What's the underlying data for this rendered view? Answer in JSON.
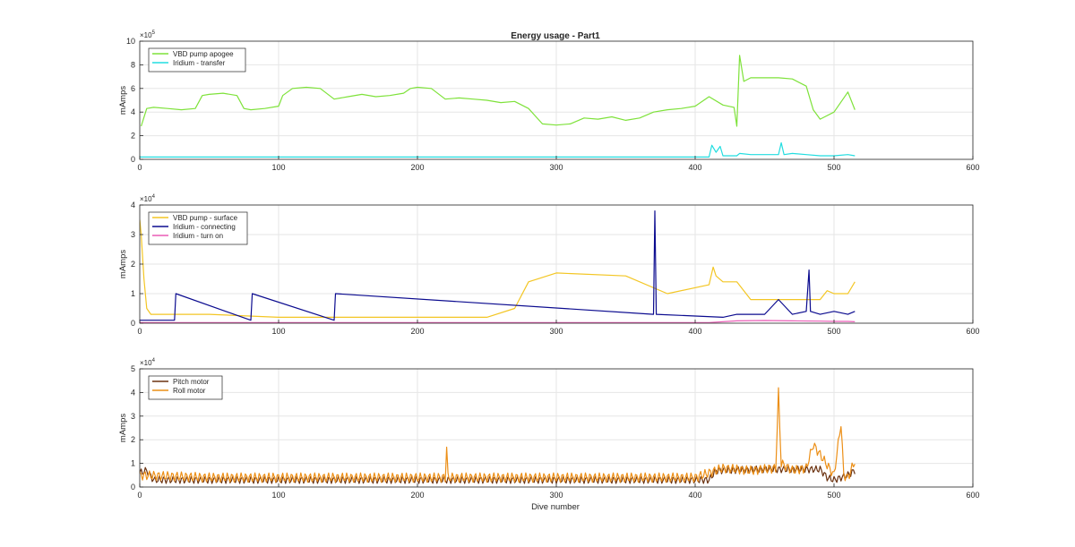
{
  "figure": {
    "title": "Energy usage - Part1",
    "xlabel": "Dive number"
  },
  "colors": {
    "vbd_apogee": "#7ee23a",
    "iridium_transfer": "#22dde0",
    "vbd_surface": "#f3c624",
    "iridium_connecting": "#0b0b8f",
    "iridium_turn_on": "#ea5cb6",
    "pitch_motor": "#6b3210",
    "roll_motor": "#ec8f17",
    "grid": "#e6e6e6",
    "axis": "#262626"
  },
  "chart_data": [
    {
      "type": "line",
      "title": "Energy usage - Part1",
      "xlabel": "",
      "ylabel": "mAmps",
      "xlim": [
        0,
        600
      ],
      "ylim": [
        0,
        1000000
      ],
      "xticks": [
        0,
        100,
        200,
        300,
        400,
        500,
        600
      ],
      "yticks": [
        0,
        200000,
        400000,
        600000,
        800000,
        1000000
      ],
      "ytick_labels": [
        "0",
        "2",
        "4",
        "6",
        "8",
        "10"
      ],
      "y_exponent": {
        "base": "×10",
        "power": "5"
      },
      "grid": true,
      "legend_position": "top-left",
      "series": [
        {
          "name": "VBD pump apogee",
          "color_key": "vbd_apogee",
          "x": [
            1,
            5,
            10,
            20,
            30,
            40,
            45,
            50,
            60,
            70,
            75,
            80,
            90,
            100,
            103,
            110,
            120,
            130,
            140,
            150,
            160,
            170,
            180,
            190,
            195,
            200,
            210,
            220,
            230,
            240,
            250,
            260,
            270,
            280,
            290,
            300,
            310,
            320,
            330,
            340,
            350,
            360,
            370,
            380,
            390,
            400,
            410,
            420,
            428,
            430,
            432,
            435,
            440,
            460,
            470,
            480,
            485,
            490,
            500,
            510,
            515
          ],
          "values": [
            280000,
            430000,
            440000,
            430000,
            420000,
            430000,
            540000,
            550000,
            560000,
            540000,
            430000,
            420000,
            430000,
            450000,
            540000,
            600000,
            610000,
            600000,
            510000,
            530000,
            550000,
            530000,
            540000,
            560000,
            600000,
            610000,
            600000,
            510000,
            520000,
            510000,
            500000,
            480000,
            490000,
            430000,
            300000,
            290000,
            300000,
            350000,
            340000,
            360000,
            330000,
            350000,
            400000,
            420000,
            430000,
            450000,
            530000,
            460000,
            440000,
            280000,
            880000,
            660000,
            690000,
            690000,
            680000,
            620000,
            420000,
            340000,
            400000,
            570000,
            420000
          ]
        },
        {
          "name": "Iridium - transfer",
          "color_key": "iridium_transfer",
          "x": [
            0,
            100,
            200,
            300,
            400,
            410,
            412,
            415,
            418,
            420,
            430,
            432,
            440,
            460,
            462,
            464,
            470,
            480,
            490,
            500,
            510,
            515
          ],
          "values": [
            20000,
            20000,
            20000,
            20000,
            20000,
            20000,
            120000,
            60000,
            110000,
            30000,
            30000,
            50000,
            40000,
            40000,
            140000,
            40000,
            50000,
            40000,
            30000,
            30000,
            40000,
            30000
          ]
        }
      ]
    },
    {
      "type": "line",
      "xlabel": "",
      "ylabel": "mAmps",
      "xlim": [
        0,
        600
      ],
      "ylim": [
        0,
        40000
      ],
      "xticks": [
        0,
        100,
        200,
        300,
        400,
        500,
        600
      ],
      "yticks": [
        0,
        10000,
        20000,
        30000,
        40000
      ],
      "ytick_labels": [
        "0",
        "1",
        "2",
        "3",
        "4"
      ],
      "y_exponent": {
        "base": "×10",
        "power": "4"
      },
      "grid": true,
      "legend_position": "top-left",
      "series": [
        {
          "name": "VBD pump - surface",
          "color_key": "vbd_surface",
          "x": [
            0,
            1,
            3,
            5,
            8,
            50,
            100,
            150,
            200,
            250,
            270,
            280,
            300,
            350,
            380,
            410,
            413,
            415,
            420,
            430,
            440,
            490,
            495,
            500,
            510,
            515
          ],
          "values": [
            35000,
            30000,
            15000,
            5000,
            3000,
            3000,
            2000,
            2000,
            2000,
            2000,
            5000,
            14000,
            17000,
            16000,
            10000,
            13000,
            19000,
            16000,
            14000,
            14000,
            8000,
            8000,
            11000,
            10000,
            10000,
            14000
          ]
        },
        {
          "name": "Iridium - connecting",
          "color_key": "iridium_connecting",
          "x": [
            0,
            25,
            26,
            80,
            81,
            140,
            141,
            370,
            371,
            372,
            420,
            430,
            450,
            460,
            470,
            480,
            482,
            483,
            490,
            500,
            510,
            515
          ],
          "values": [
            1000,
            1000,
            10000,
            1000,
            10000,
            1000,
            10000,
            3000,
            38000,
            3000,
            2000,
            3000,
            3000,
            8000,
            3000,
            4000,
            18000,
            4000,
            3000,
            4000,
            3000,
            4000
          ]
        },
        {
          "name": "Iridium - turn on",
          "color_key": "iridium_turn_on",
          "x": [
            0,
            100,
            200,
            300,
            400,
            410,
            430,
            450,
            470,
            490,
            500,
            510,
            515
          ],
          "values": [
            200,
            200,
            200,
            200,
            200,
            200,
            800,
            900,
            800,
            700,
            600,
            600,
            500
          ]
        }
      ]
    },
    {
      "type": "line",
      "xlabel": "Dive number",
      "ylabel": "mAmps",
      "xlim": [
        0,
        600
      ],
      "ylim": [
        0,
        50000
      ],
      "xticks": [
        0,
        100,
        200,
        300,
        400,
        500,
        600
      ],
      "yticks": [
        0,
        10000,
        20000,
        30000,
        40000,
        50000
      ],
      "ytick_labels": [
        "0",
        "1",
        "2",
        "3",
        "4",
        "5"
      ],
      "y_exponent": {
        "base": "×10",
        "power": "4"
      },
      "grid": true,
      "legend_position": "top-left",
      "series": [
        {
          "name": "Pitch motor",
          "color_key": "pitch_motor",
          "x": [
            0,
            5,
            10,
            50,
            100,
            200,
            300,
            400,
            410,
            415,
            450,
            490,
            495,
            500,
            510,
            515
          ],
          "values": [
            6000,
            7000,
            3000,
            3000,
            3000,
            3000,
            3000,
            3000,
            3000,
            7000,
            7500,
            7500,
            4000,
            3000,
            5000,
            7000
          ],
          "wave_amplitude": 1500
        },
        {
          "name": "Roll motor",
          "color_key": "roll_motor",
          "x": [
            0,
            50,
            100,
            200,
            220,
            221,
            222,
            230,
            300,
            400,
            420,
            440,
            458,
            460,
            462,
            470,
            480,
            485,
            500,
            505,
            507,
            510,
            515
          ],
          "values": [
            5000,
            4000,
            4000,
            4000,
            4000,
            17000,
            4000,
            4000,
            4000,
            4000,
            8000,
            7000,
            8000,
            40000,
            10000,
            7000,
            8000,
            18000,
            5000,
            27000,
            5000,
            4000,
            11000
          ],
          "wave_amplitude": 2000
        }
      ]
    }
  ]
}
